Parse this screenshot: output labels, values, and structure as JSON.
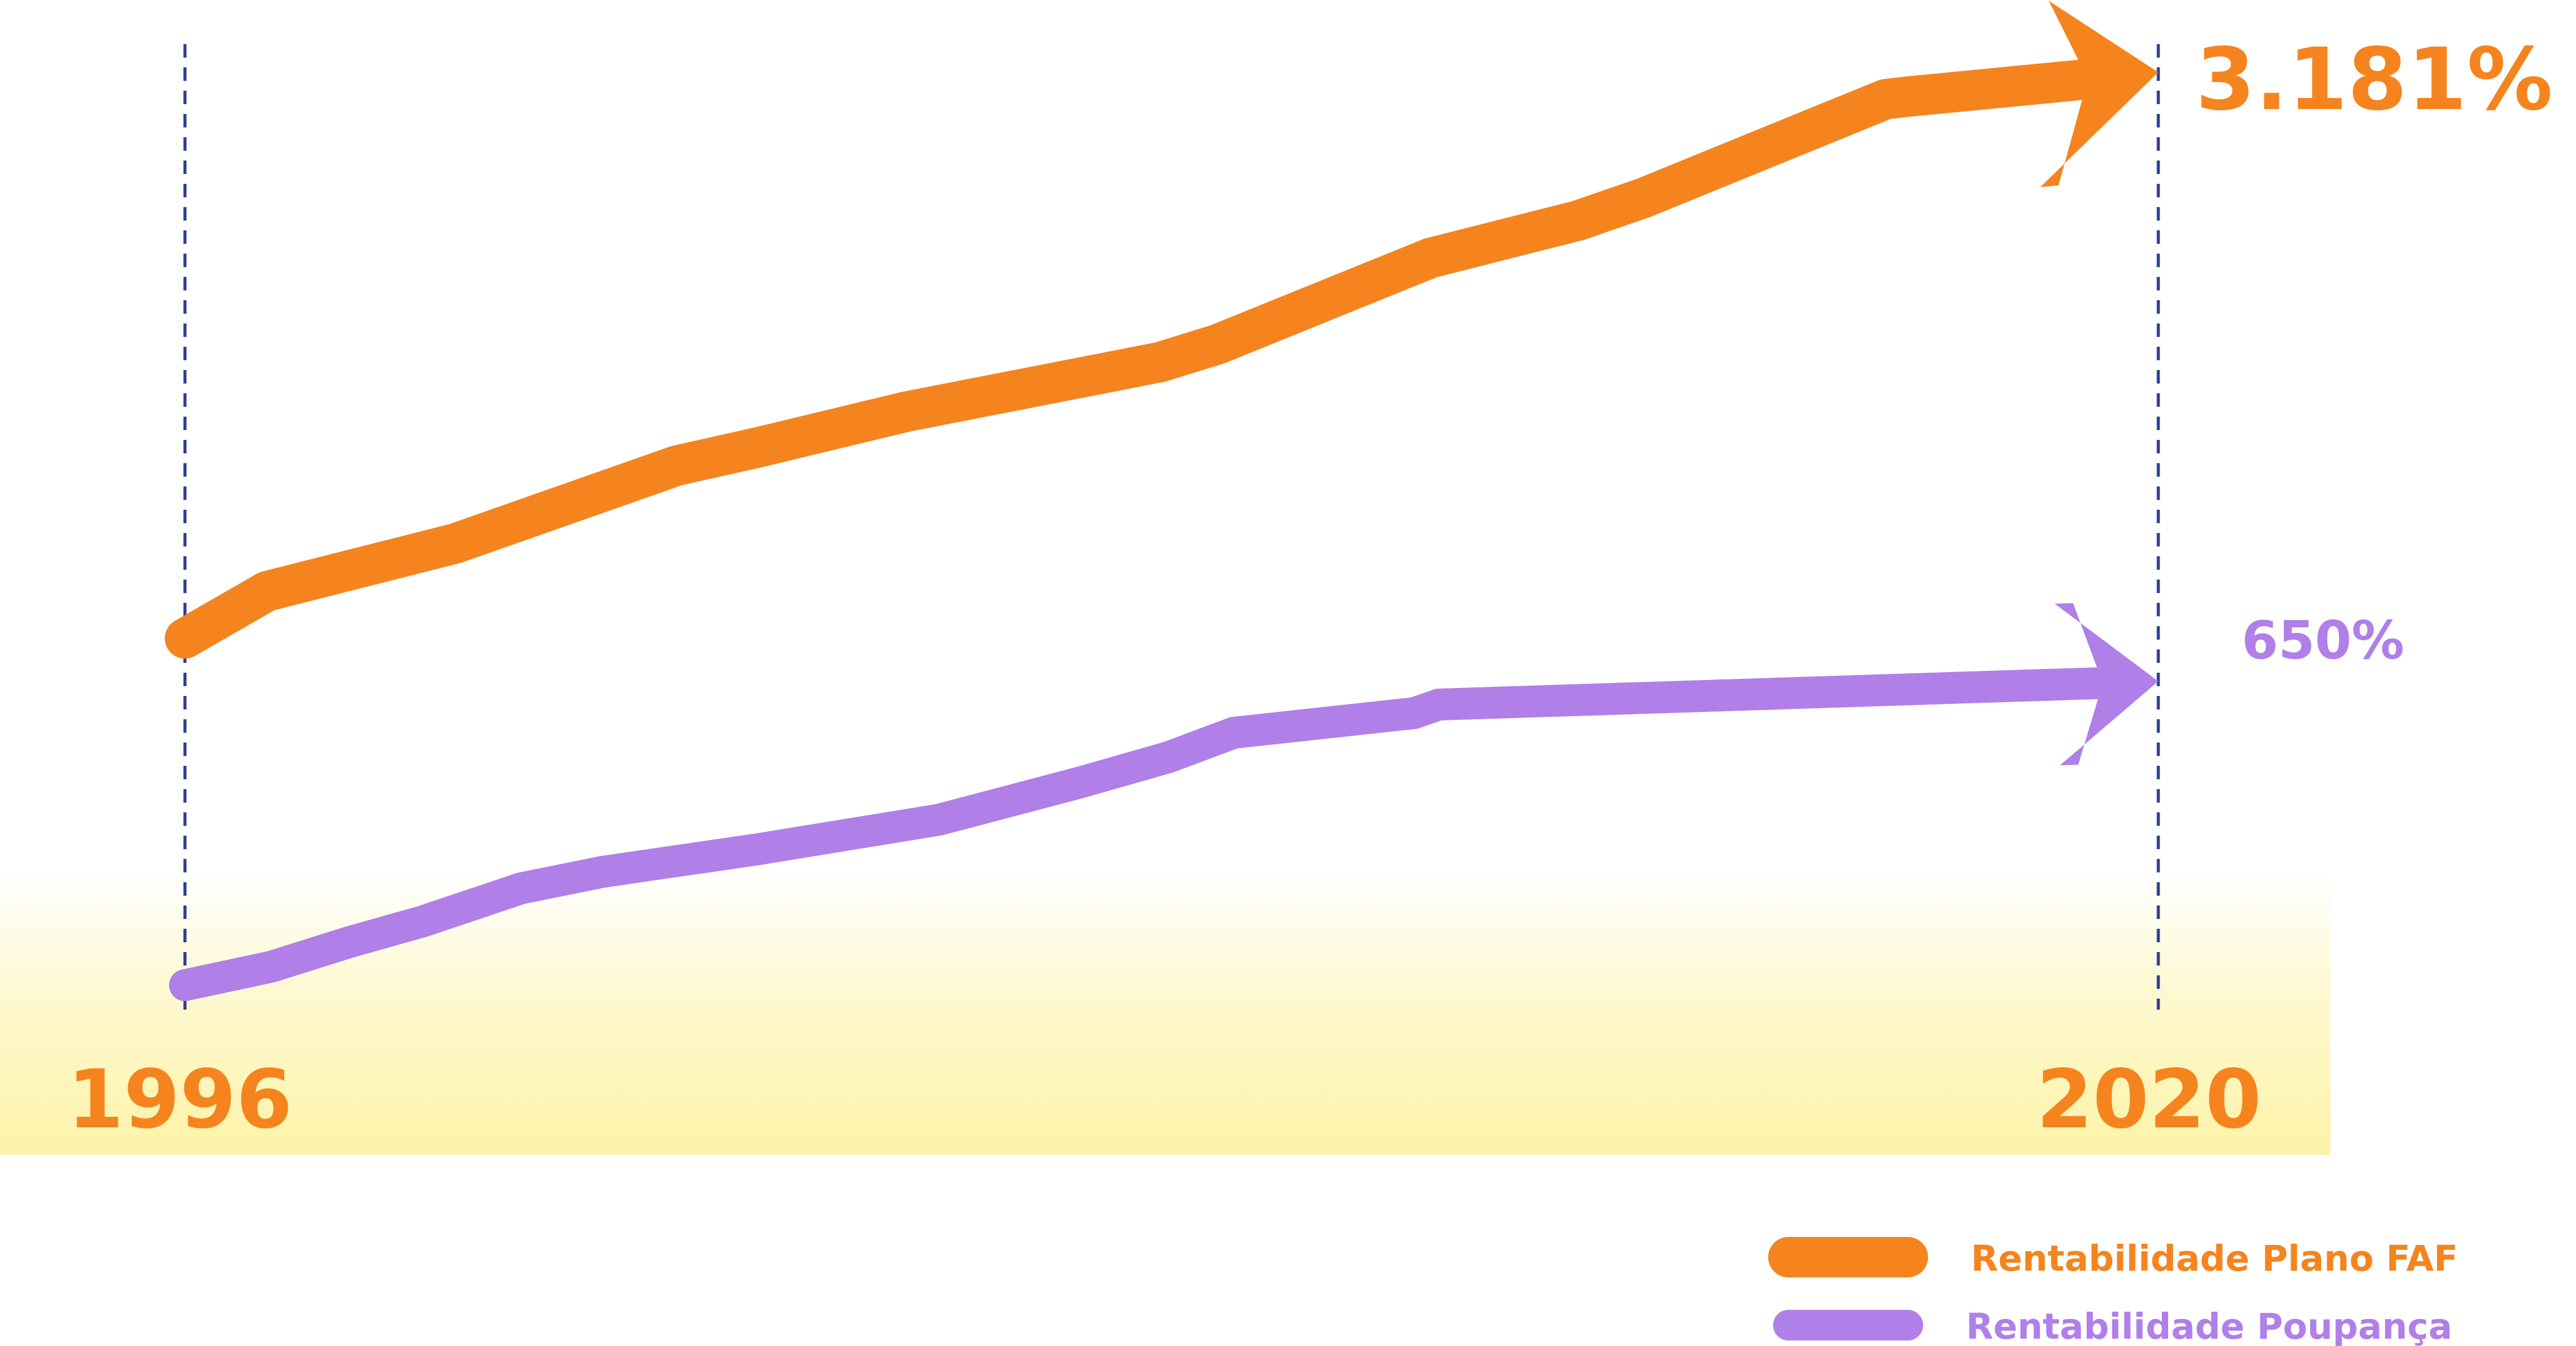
{
  "chart_data": {
    "type": "line",
    "x_start_label": "1996",
    "x_end_label": "2020",
    "colors": {
      "faf": "#f5841f",
      "poupanca": "#b07fe8",
      "guide": "#2b3f8f",
      "band": "#fdf3a8"
    },
    "series": [
      {
        "key": "faf",
        "name": "Rentabilidade Plano FAF",
        "color": "#f5841f",
        "end_value_label": "3.181%",
        "points": [
          [
            0,
            1042
          ],
          [
            2,
            965
          ],
          [
            6.6,
            887
          ],
          [
            12,
            760
          ],
          [
            14,
            730
          ],
          [
            17.6,
            672
          ],
          [
            23.8,
            591
          ],
          [
            25.2,
            562
          ],
          [
            30.4,
            421
          ],
          [
            34,
            360
          ],
          [
            35.6,
            323
          ],
          [
            41.5,
            162
          ],
          [
            42,
            158
          ]
        ]
      },
      {
        "key": "poupanca",
        "name": "Rentabilidade Poupança",
        "color": "#b07fe8",
        "end_value_label": "650%",
        "points": [
          [
            0,
            1608
          ],
          [
            2.1,
            1578
          ],
          [
            4,
            1538
          ],
          [
            5.8,
            1504
          ],
          [
            8.2,
            1450
          ],
          [
            10.2,
            1423
          ],
          [
            14,
            1386
          ],
          [
            18.4,
            1338
          ],
          [
            21.8,
            1278
          ],
          [
            24,
            1236
          ],
          [
            25.6,
            1196
          ],
          [
            30,
            1164
          ],
          [
            30.6,
            1150
          ]
        ]
      }
    ]
  }
}
